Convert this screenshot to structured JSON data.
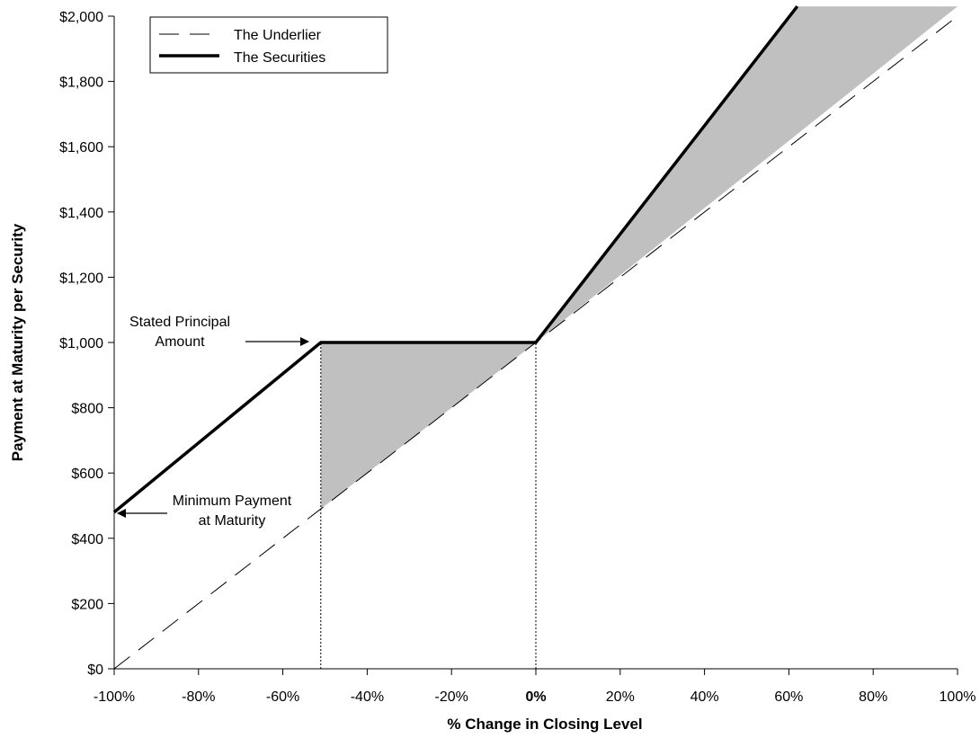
{
  "chart_data": {
    "type": "line",
    "title": "",
    "xlabel": "% Change in Closing Level",
    "ylabel": "Payment at Maturity per Security",
    "xlim": [
      -100,
      100
    ],
    "ylim": [
      0,
      2000
    ],
    "x_ticks": [
      -100,
      -80,
      -60,
      -40,
      -20,
      0,
      20,
      40,
      60,
      80,
      100
    ],
    "x_tick_labels": [
      "-100%",
      "-80%",
      "-60%",
      "-40%",
      "-20%",
      "0%",
      "20%",
      "40%",
      "60%",
      "80%",
      "100%"
    ],
    "y_ticks": [
      0,
      200,
      400,
      600,
      800,
      1000,
      1200,
      1400,
      1600,
      1800,
      2000
    ],
    "y_tick_labels": [
      "$0",
      "$200",
      "$400",
      "$600",
      "$800",
      "$1,000",
      "$1,200",
      "$1,400",
      "$1,600",
      "$1,800",
      "$2,000"
    ],
    "grid": false,
    "legend_position": "top-left",
    "series": [
      {
        "name": "The Underlier",
        "style": "dashed",
        "color": "#000000",
        "x": [
          -100,
          100
        ],
        "y": [
          0,
          2000
        ]
      },
      {
        "name": "The Securities",
        "style": "solid-bold",
        "color": "#000000",
        "x": [
          -100,
          -51,
          0,
          62
        ],
        "y": [
          480,
          1000,
          1000,
          2030
        ]
      }
    ],
    "shaded_regions": [
      {
        "color": "#c0c0c0",
        "x": [
          -51,
          0,
          -51
        ],
        "y": [
          1000,
          1000,
          490
        ]
      },
      {
        "color": "#c0c0c0",
        "x": [
          0,
          62,
          100
        ],
        "y": [
          1000,
          2030,
          2030
        ]
      }
    ],
    "reference_lines": [
      {
        "style": "dotted",
        "x": -51,
        "y_from": 0,
        "y_to": 1000
      },
      {
        "style": "dotted",
        "x": 0,
        "y_from": 0,
        "y_to": 1000
      }
    ],
    "annotations": [
      {
        "lines": [
          "Stated Principal",
          "Amount"
        ],
        "points_to": {
          "x": -51,
          "y": 1000
        }
      },
      {
        "lines": [
          "Minimum Payment",
          "at Maturity"
        ],
        "points_to": {
          "x": -100,
          "y": 480
        }
      }
    ]
  }
}
